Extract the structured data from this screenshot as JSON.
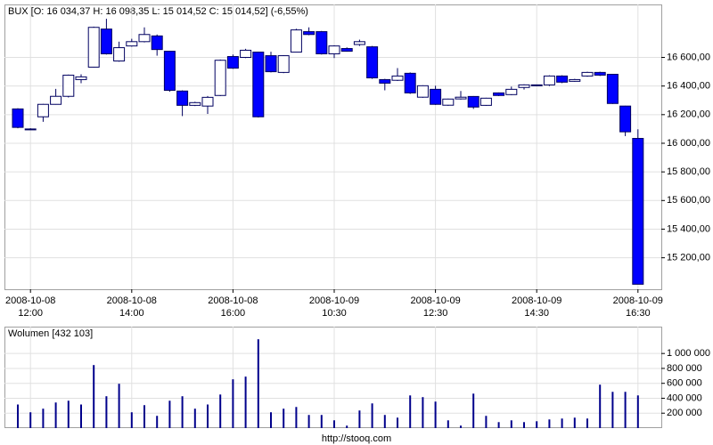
{
  "chart_data": [
    {
      "type": "candlestick",
      "title": "BUX [O: 16 034,37  H: 16 098,35  L: 15 014,52  C: 15 014,52] (-6,55%)",
      "categories": [
        null,
        [
          "2008-10-08",
          "12:00"
        ],
        null,
        null,
        null,
        null,
        null,
        null,
        null,
        [
          "2008-10-08",
          "14:00"
        ],
        null,
        null,
        null,
        null,
        null,
        null,
        null,
        [
          "2008-10-08",
          "16:00"
        ],
        null,
        null,
        null,
        null,
        null,
        null,
        null,
        [
          "2008-10-09",
          "10:30"
        ],
        null,
        null,
        null,
        null,
        null,
        null,
        null,
        [
          "2008-10-09",
          "12:30"
        ],
        null,
        null,
        null,
        null,
        null,
        null,
        null,
        [
          "2008-10-09",
          "14:30"
        ],
        null,
        null,
        null,
        null,
        null,
        null,
        null,
        [
          "2008-10-09",
          "16:30"
        ]
      ],
      "open": [
        16240,
        16095,
        16185,
        16272,
        16328,
        16445,
        16532,
        16798,
        16575,
        16680,
        16710,
        16750,
        16643,
        16365,
        16265,
        16260,
        16334,
        16606,
        16600,
        16637,
        16612,
        16495,
        16637,
        16780,
        16780,
        16625,
        16662,
        16690,
        16674,
        16445,
        16440,
        16489,
        16322,
        16377,
        16266,
        16310,
        16327,
        16265,
        16352,
        16340,
        16390,
        16402,
        16408,
        16470,
        16433,
        16470,
        16495,
        16482,
        16260,
        16034
      ],
      "high": [
        16245,
        16105,
        16275,
        16380,
        16480,
        16482,
        16815,
        16870,
        16710,
        16730,
        16810,
        16760,
        16645,
        16370,
        16290,
        16330,
        16585,
        16620,
        16660,
        16640,
        16640,
        16615,
        16800,
        16810,
        16785,
        16685,
        16670,
        16724,
        16680,
        16450,
        16525,
        16495,
        16405,
        16402,
        16312,
        16365,
        16330,
        16318,
        16355,
        16396,
        16412,
        16410,
        16475,
        16475,
        16450,
        16500,
        16500,
        16485,
        16262,
        16098
      ],
      "low": [
        16105,
        16095,
        16150,
        16270,
        16320,
        16420,
        16530,
        16620,
        16570,
        16675,
        16705,
        16612,
        16360,
        16190,
        16260,
        16205,
        16330,
        16520,
        16595,
        16180,
        16495,
        16490,
        16635,
        16755,
        16620,
        16595,
        16640,
        16680,
        16450,
        16370,
        16435,
        16345,
        16318,
        16268,
        16262,
        16305,
        16240,
        16262,
        16330,
        16336,
        16375,
        16400,
        16400,
        16420,
        16430,
        16465,
        16470,
        16275,
        16050,
        15015
      ],
      "close": [
        16111,
        16100,
        16272,
        16328,
        16476,
        16464,
        16810,
        16625,
        16668,
        16710,
        16760,
        16655,
        16370,
        16265,
        16284,
        16321,
        16580,
        16525,
        16650,
        16185,
        16500,
        16612,
        16792,
        16760,
        16625,
        16680,
        16643,
        16710,
        16457,
        16420,
        16470,
        16352,
        16402,
        16272,
        16309,
        16322,
        16253,
        16315,
        16334,
        16377,
        16408,
        16408,
        16470,
        16427,
        16445,
        16495,
        16476,
        16278,
        16080,
        15015
      ],
      "up_color": "#ffffff",
      "down_color": "#0000ff",
      "line_color": "#000060",
      "ylim": [
        14980,
        16970
      ],
      "yticks": [
        {
          "value": 15200,
          "label": "15 200,00"
        },
        {
          "value": 15400,
          "label": "15 400,00"
        },
        {
          "value": 15600,
          "label": "15 600,00"
        },
        {
          "value": 15800,
          "label": "15 800,00"
        },
        {
          "value": 16000,
          "label": "16 000,00"
        },
        {
          "value": 16200,
          "label": "16 200,00"
        },
        {
          "value": 16400,
          "label": "16 400,00"
        },
        {
          "value": 16600,
          "label": "16 600,00"
        }
      ],
      "grid": true
    },
    {
      "type": "bar",
      "title": "Wolumen [432 103]",
      "values": [
        316000,
        212000,
        260000,
        343000,
        367000,
        316000,
        845000,
        427000,
        594000,
        212000,
        307000,
        164000,
        367000,
        427000,
        260000,
        316000,
        450000,
        654000,
        690000,
        1191000,
        212000,
        260000,
        283000,
        176000,
        176000,
        104000,
        33000,
        236000,
        331000,
        176000,
        140000,
        438000,
        415000,
        355000,
        104000,
        33000,
        462000,
        164000,
        80000,
        104000,
        80000,
        92000,
        116000,
        128000,
        140000,
        128000,
        582000,
        486000,
        486000,
        438000
      ],
      "color": "#00008b",
      "ylim": [
        0,
        1360000
      ],
      "yticks": [
        {
          "value": 200000,
          "label": "200 000"
        },
        {
          "value": 400000,
          "label": "400 000"
        },
        {
          "value": 600000,
          "label": "600 000"
        },
        {
          "value": 800000,
          "label": "800 000"
        },
        {
          "value": 1000000,
          "label": "1 000 000"
        }
      ],
      "grid": true
    }
  ],
  "footer": "http://stooq.com"
}
